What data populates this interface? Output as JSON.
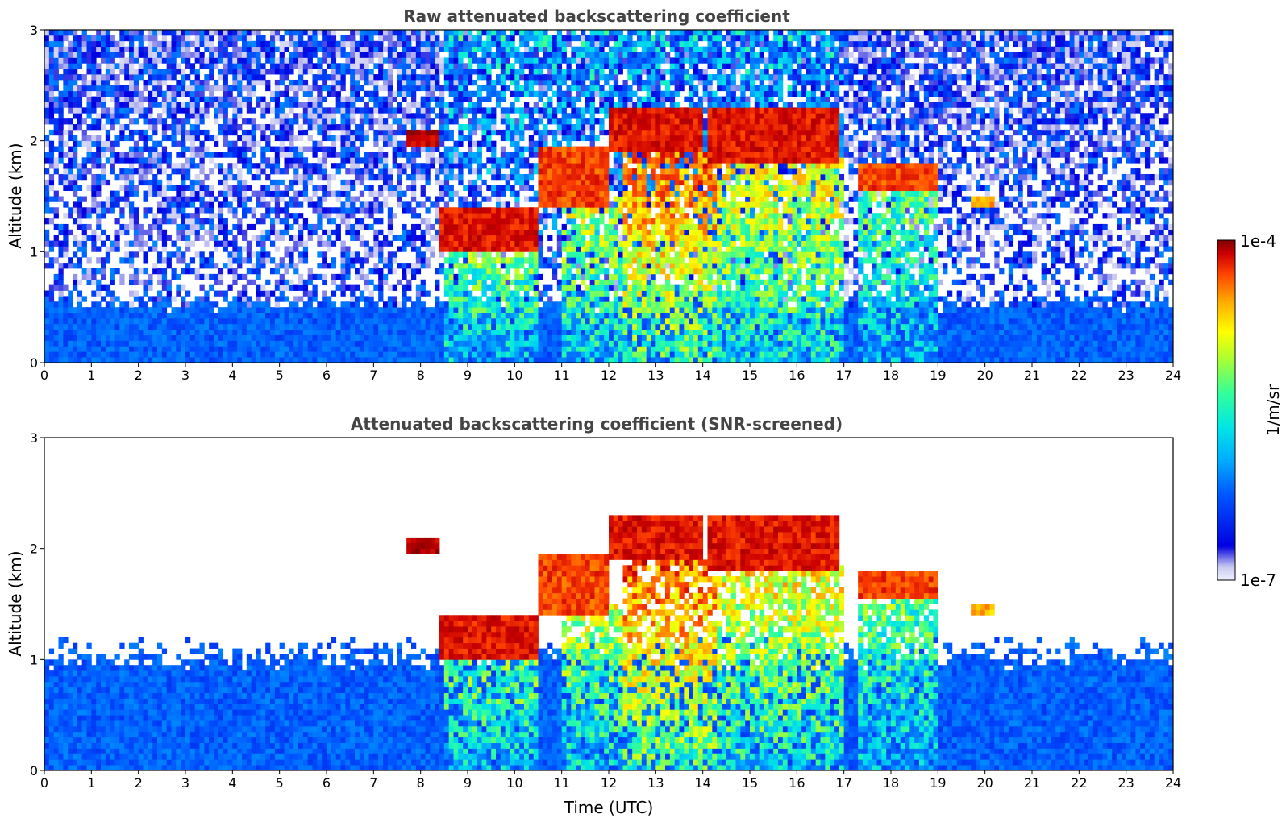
{
  "colors": {
    "background": "#ffffff",
    "title": "#444444",
    "colormap": [
      "#f0f0ff",
      "#c8c8f0",
      "#0000e0",
      "#0055ff",
      "#00aaff",
      "#00e6e6",
      "#33ff99",
      "#aaff33",
      "#ffff00",
      "#ffaa00",
      "#ff4400",
      "#cc0000",
      "#800000"
    ]
  },
  "chart_data": [
    {
      "type": "heatmap",
      "title": "Raw attenuated backscattering coefficient",
      "xlabel": "",
      "ylabel": "Altitude (km)",
      "xlim": [
        0,
        24
      ],
      "ylim": [
        0,
        3
      ],
      "xticks": [
        "0",
        "1",
        "2",
        "3",
        "4",
        "5",
        "6",
        "7",
        "8",
        "9",
        "10",
        "11",
        "12",
        "13",
        "14",
        "15",
        "16",
        "17",
        "18",
        "19",
        "20",
        "21",
        "22",
        "23",
        "24"
      ],
      "yticks": [
        "0",
        "1",
        "2",
        "3"
      ],
      "grid": false,
      "noise": "high",
      "features": [
        {
          "kind": "boundary_layer",
          "x_range": [
            0,
            24
          ],
          "top_km": 0.55,
          "level": 0.22
        },
        {
          "kind": "cloud_layer",
          "x_range": [
            7.7,
            8.4
          ],
          "base_km": 1.95,
          "top_km": 2.1,
          "level": 1.0
        },
        {
          "kind": "cloud_layer",
          "x_range": [
            8.4,
            10.5
          ],
          "base_km": 1.0,
          "top_km": 1.4,
          "level": 0.95
        },
        {
          "kind": "cloud_layer",
          "x_range": [
            10.5,
            12.0
          ],
          "base_km": 1.4,
          "top_km": 1.95,
          "level": 0.9
        },
        {
          "kind": "cloud_layer",
          "x_range": [
            12.0,
            14.0
          ],
          "base_km": 1.9,
          "top_km": 2.3,
          "level": 0.95
        },
        {
          "kind": "cloud_layer",
          "x_range": [
            14.1,
            16.9
          ],
          "base_km": 1.8,
          "top_km": 2.3,
          "level": 0.95
        },
        {
          "kind": "cloud_layer",
          "x_range": [
            17.3,
            19.0
          ],
          "base_km": 1.55,
          "top_km": 1.8,
          "level": 0.9
        },
        {
          "kind": "cloud_layer",
          "x_range": [
            19.7,
            20.2
          ],
          "base_km": 1.38,
          "top_km": 1.5,
          "level": 0.8
        },
        {
          "kind": "precipitation",
          "x_range": [
            8.5,
            10.5
          ],
          "top_km": 1.2,
          "level": 0.45
        },
        {
          "kind": "precipitation",
          "x_range": [
            11.0,
            12.3
          ],
          "top_km": 1.5,
          "level": 0.5
        },
        {
          "kind": "precipitation",
          "x_range": [
            12.3,
            14.3
          ],
          "top_km": 1.9,
          "level": 0.7
        },
        {
          "kind": "precipitation",
          "x_range": [
            14.3,
            17.0
          ],
          "top_km": 1.85,
          "level": 0.55
        },
        {
          "kind": "precipitation",
          "x_range": [
            17.3,
            19.0
          ],
          "top_km": 1.6,
          "level": 0.4
        }
      ]
    },
    {
      "type": "heatmap",
      "title": "Attenuated backscattering coefficient (SNR-screened)",
      "xlabel": "Time (UTC)",
      "ylabel": "Altitude (km)",
      "xlim": [
        0,
        24
      ],
      "ylim": [
        0,
        3
      ],
      "xticks": [
        "0",
        "1",
        "2",
        "3",
        "4",
        "5",
        "6",
        "7",
        "8",
        "9",
        "10",
        "11",
        "12",
        "13",
        "14",
        "15",
        "16",
        "17",
        "18",
        "19",
        "20",
        "21",
        "22",
        "23",
        "24"
      ],
      "yticks": [
        "0",
        "1",
        "2",
        "3"
      ],
      "grid": false,
      "noise": "screened",
      "features": [
        {
          "kind": "boundary_layer",
          "x_range": [
            0,
            24
          ],
          "top_km": 1.05,
          "level": 0.22
        },
        {
          "kind": "cloud_layer",
          "x_range": [
            7.7,
            8.4
          ],
          "base_km": 1.95,
          "top_km": 2.1,
          "level": 1.0
        },
        {
          "kind": "cloud_layer",
          "x_range": [
            8.4,
            10.5
          ],
          "base_km": 1.0,
          "top_km": 1.4,
          "level": 0.95
        },
        {
          "kind": "cloud_layer",
          "x_range": [
            10.5,
            12.0
          ],
          "base_km": 1.4,
          "top_km": 1.95,
          "level": 0.9
        },
        {
          "kind": "cloud_layer",
          "x_range": [
            12.0,
            14.0
          ],
          "base_km": 1.9,
          "top_km": 2.3,
          "level": 0.95
        },
        {
          "kind": "cloud_layer",
          "x_range": [
            14.1,
            16.9
          ],
          "base_km": 1.8,
          "top_km": 2.3,
          "level": 0.95
        },
        {
          "kind": "cloud_layer",
          "x_range": [
            17.3,
            19.0
          ],
          "base_km": 1.55,
          "top_km": 1.8,
          "level": 0.9
        },
        {
          "kind": "cloud_layer",
          "x_range": [
            19.7,
            20.2
          ],
          "base_km": 1.38,
          "top_km": 1.5,
          "level": 0.8
        },
        {
          "kind": "precipitation",
          "x_range": [
            8.5,
            10.5
          ],
          "top_km": 1.2,
          "level": 0.45
        },
        {
          "kind": "precipitation",
          "x_range": [
            11.0,
            12.3
          ],
          "top_km": 1.5,
          "level": 0.5
        },
        {
          "kind": "precipitation",
          "x_range": [
            12.3,
            14.3
          ],
          "top_km": 1.9,
          "level": 0.7
        },
        {
          "kind": "precipitation",
          "x_range": [
            14.3,
            17.0
          ],
          "top_km": 1.85,
          "level": 0.55
        },
        {
          "kind": "precipitation",
          "x_range": [
            17.3,
            19.0
          ],
          "top_km": 1.6,
          "level": 0.4
        }
      ]
    }
  ],
  "colorbar": {
    "label": "1/m/sr",
    "max_label": "1e-4",
    "min_label": "1e-7",
    "scale": "log",
    "range": [
      1e-07,
      0.0001
    ]
  }
}
